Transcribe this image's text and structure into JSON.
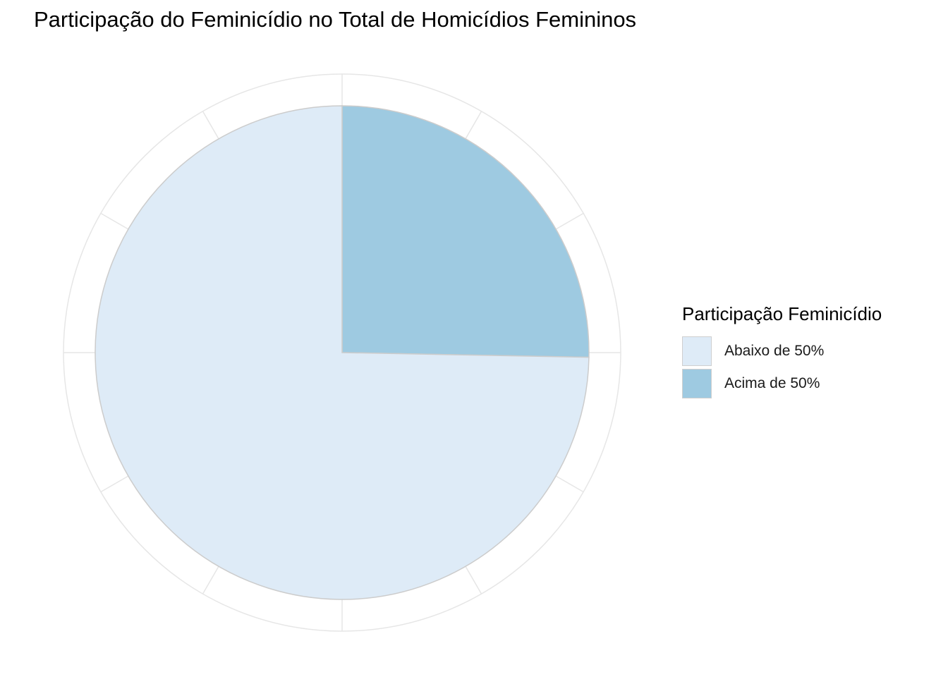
{
  "chart_data": {
    "type": "pie",
    "title": "Participação do Feminicídio no Total de Homicídios Femininos",
    "legend_title": "Participação Feminicídio",
    "legend_position": "right",
    "slices": [
      {
        "label": "Abaixo de 50%",
        "value": 74.7,
        "color": "#deebf7"
      },
      {
        "label": "Acima de 50%",
        "value": 25.3,
        "color": "#9ecae1"
      }
    ],
    "grid": true,
    "slice_border_color": "#cccccc",
    "grid_color": "#e6e6e6"
  }
}
